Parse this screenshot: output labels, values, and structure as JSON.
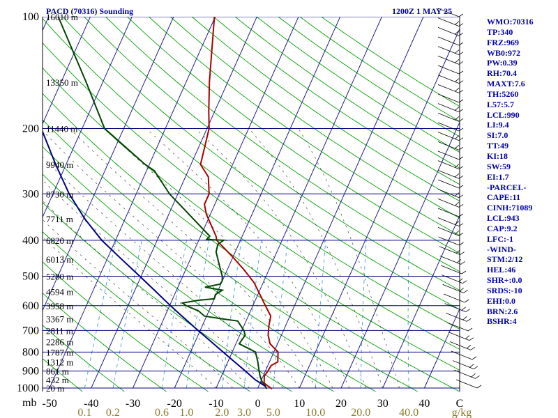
{
  "header": {
    "station": "PACD (70316) Sounding",
    "datetime": "1200Z  1 MAY 25"
  },
  "indices": [
    "WMO:70316",
    "TP:340",
    "FRZ:969",
    "WB0:972",
    "PW:0.39",
    "RH:70.4",
    "MAXT:7.6",
    "TH:5260",
    "L57:5.7",
    "LCL:990",
    "LI:9.4",
    "SI:7.0",
    "TT:49",
    "KI:18",
    "SW:59",
    "EI:1.7",
    "-PARCEL-",
    "CAPE:11",
    "CINH:71089",
    "LCL:943",
    "CAP:9.2",
    "LFC:-1",
    "-WIND-",
    "STM:2/12",
    "HEL:46",
    "SHR+:0.0",
    "SRDS:-10",
    "EHI:0.0",
    "BRN:2.6",
    "BSHR:4"
  ],
  "chart_data": {
    "type": "line",
    "subtype": "skew-T log-p sounding",
    "y_axis": {
      "label": "mb",
      "scale": "log",
      "range": [
        1000,
        100
      ],
      "ticks": [
        100,
        200,
        300,
        400,
        500,
        600,
        700,
        800,
        900,
        1000
      ]
    },
    "x_axis": {
      "temperature_ticks": [
        "-50",
        "-40",
        "-30",
        "-20",
        "-10",
        "0",
        "10",
        "20",
        "30",
        "40",
        "C"
      ],
      "mixing_ratio_ticks": [
        "0.1",
        "0.2",
        "0.6",
        "1.0",
        "2.0",
        "3.0",
        "5.0",
        "10.0",
        "20.0",
        "40.0",
        "g/kg"
      ]
    },
    "height_labels": [
      {
        "p": 100,
        "label": "16010 m"
      },
      {
        "p": 150,
        "label": "13350 m"
      },
      {
        "p": 200,
        "label": "11440 m"
      },
      {
        "p": 250,
        "label": "9940 m"
      },
      {
        "p": 300,
        "label": "8730 m"
      },
      {
        "p": 350,
        "label": "7711 m"
      },
      {
        "p": 400,
        "label": "6820 m"
      },
      {
        "p": 450,
        "label": "6013 m"
      },
      {
        "p": 500,
        "label": "5280 m"
      },
      {
        "p": 550,
        "label": "4594 m"
      },
      {
        "p": 600,
        "label": "3958 m"
      },
      {
        "p": 650,
        "label": "3367 m"
      },
      {
        "p": 700,
        "label": "2811 m"
      },
      {
        "p": 750,
        "label": "2286 m"
      },
      {
        "p": 800,
        "label": "1787 m"
      },
      {
        "p": 850,
        "label": "1312 m"
      },
      {
        "p": 900,
        "label": "861 m"
      },
      {
        "p": 950,
        "label": "432 m"
      },
      {
        "p": 1000,
        "label": "20 m"
      }
    ],
    "series": [
      {
        "color": "#aa0000",
        "points": [
          [
            1005,
            3.5
          ],
          [
            990,
            2.4
          ],
          [
            970,
            1.0
          ],
          [
            930,
            0.3
          ],
          [
            900,
            0.6
          ],
          [
            870,
            0.8
          ],
          [
            850,
            2.0
          ],
          [
            800,
            1.0
          ],
          [
            760,
            -1.8
          ],
          [
            720,
            -3.2
          ],
          [
            680,
            -4.0
          ],
          [
            640,
            -4.6
          ],
          [
            600,
            -7.0
          ],
          [
            560,
            -9.5
          ],
          [
            520,
            -12.2
          ],
          [
            480,
            -16.0
          ],
          [
            440,
            -20.5
          ],
          [
            400,
            -25.7
          ],
          [
            390,
            -26.3
          ],
          [
            340,
            -31.0
          ],
          [
            320,
            -32.5
          ],
          [
            300,
            -32.5
          ],
          [
            270,
            -34.5
          ],
          [
            250,
            -37.7
          ],
          [
            200,
            -39.5
          ],
          [
            180,
            -41.4
          ],
          [
            150,
            -44.4
          ],
          [
            100,
            -50.2
          ]
        ]
      },
      {
        "color": "#004400",
        "points": [
          [
            1005,
            2.2
          ],
          [
            990,
            1.7
          ],
          [
            960,
            0.3
          ],
          [
            930,
            -0.7
          ],
          [
            900,
            -1.5
          ],
          [
            850,
            -2.8
          ],
          [
            800,
            -4.4
          ],
          [
            760,
            -9.2
          ],
          [
            720,
            -8.7
          ],
          [
            700,
            -9.5
          ],
          [
            660,
            -12.0
          ],
          [
            650,
            -16.5
          ],
          [
            640,
            -20.5
          ],
          [
            620,
            -22.5
          ],
          [
            600,
            -26.0
          ],
          [
            590,
            -27.2
          ],
          [
            580,
            -23.5
          ],
          [
            575,
            -20.0
          ],
          [
            560,
            -20.2
          ],
          [
            545,
            -19.0
          ],
          [
            535,
            -23.5
          ],
          [
            525,
            -20.2
          ],
          [
            515,
            -20.0
          ],
          [
            500,
            -20.5
          ],
          [
            470,
            -22.2
          ],
          [
            430,
            -24.6
          ],
          [
            410,
            -25.0
          ],
          [
            400,
            -24.0
          ],
          [
            398,
            -28.2
          ],
          [
            390,
            -27.8
          ],
          [
            300,
            -42.0
          ],
          [
            260,
            -48.1
          ],
          [
            250,
            -51.0
          ],
          [
            200,
            -64.6
          ],
          [
            150,
            -74.0
          ],
          [
            100,
            -87.7
          ]
        ]
      },
      {
        "color": "#000080",
        "points": [
          [
            990,
            1.7
          ],
          [
            950,
            -1.5
          ],
          [
            900,
            -4.8
          ],
          [
            850,
            -8.4
          ],
          [
            800,
            -12.2
          ],
          [
            750,
            -16.2
          ],
          [
            700,
            -20.5
          ],
          [
            650,
            -25.0
          ],
          [
            600,
            -29.8
          ],
          [
            550,
            -34.8
          ],
          [
            500,
            -40.3
          ],
          [
            450,
            -46.5
          ],
          [
            400,
            -53.3
          ],
          [
            350,
            -59.7
          ],
          [
            300,
            -66.1
          ],
          [
            250,
            -72.5
          ],
          [
            200,
            -79.8
          ],
          [
            150,
            -87.5
          ],
          [
            125,
            -92.0
          ]
        ]
      }
    ],
    "wind_barbs_shown": true,
    "grid": true
  },
  "colors": {
    "isobar": "#000080",
    "isotherm": "#1e1e8c",
    "dry_adiabat": "#00a000",
    "moist_adiabat": "#444444",
    "mixing_ratio": "#3f9fdf",
    "header_text": "#0000aa",
    "mixing_ratio_label": "#8a7a2a"
  }
}
